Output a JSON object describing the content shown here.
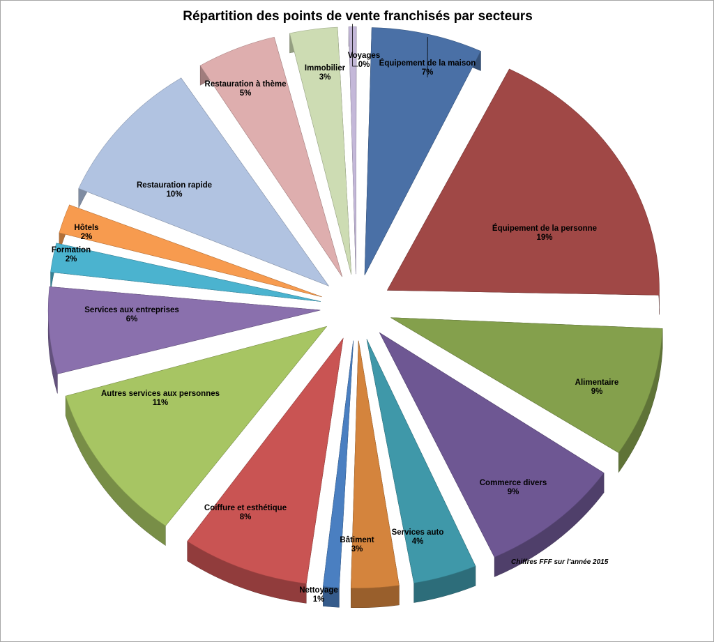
{
  "chart_data": {
    "type": "pie",
    "title": "Répartition des points de vente franchisés par secteurs",
    "footnote": "Chiffres FFF sur l’année 2015",
    "slices": [
      {
        "label": "Équipement de la maison",
        "value": 7,
        "display": "7%",
        "color": "#4a70a6"
      },
      {
        "label": "Équipement de la personne",
        "value": 19,
        "display": "19%",
        "color": "#a04846"
      },
      {
        "label": "Alimentaire",
        "value": 9,
        "display": "9%",
        "color": "#84a04c"
      },
      {
        "label": "Commerce divers",
        "value": 9,
        "display": "9%",
        "color": "#6e5793"
      },
      {
        "label": "Services auto",
        "value": 4,
        "display": "4%",
        "color": "#3f98a9"
      },
      {
        "label": "Bâtiment",
        "value": 3,
        "display": "3%",
        "color": "#d4843d"
      },
      {
        "label": "Nettoyage",
        "value": 1,
        "display": "1%",
        "color": "#4a7fc1"
      },
      {
        "label": "Coiffure et esthétique",
        "value": 8,
        "display": "8%",
        "color": "#c95453"
      },
      {
        "label": "Autres services aux personnes",
        "value": 11,
        "display": "11%",
        "color": "#a7c563"
      },
      {
        "label": "Services aux entreprises",
        "value": 6,
        "display": "6%",
        "color": "#8a70ad"
      },
      {
        "label": "Formation",
        "value": 2,
        "display": "2%",
        "color": "#4bb3cf"
      },
      {
        "label": "Hôtels",
        "value": 2,
        "display": "2%",
        "color": "#f79b4f"
      },
      {
        "label": "Restauration rapide",
        "value": 10,
        "display": "10%",
        "color": "#b1c3e1"
      },
      {
        "label": "Restauration à thème",
        "value": 5,
        "display": "5%",
        "color": "#deaeae"
      },
      {
        "label": "Immobilier",
        "value": 3,
        "display": "3%",
        "color": "#cddcb3"
      },
      {
        "label": "Voyages",
        "value": 0,
        "display": "0%",
        "color": "#c4b8d9"
      }
    ]
  }
}
